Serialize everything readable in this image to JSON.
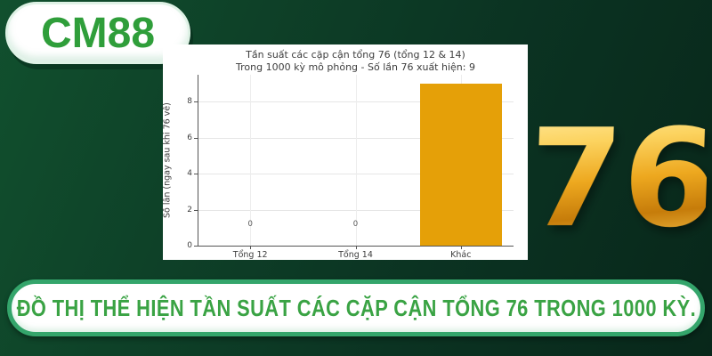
{
  "background": {
    "top_left": "#11502e",
    "bottom_right": "#08271a"
  },
  "logo": {
    "text": "CM88",
    "text_color": "#2f9e3a"
  },
  "hero_number": {
    "text": "76",
    "gold_light": "#ffeaa0",
    "gold_dark": "#c67c0a"
  },
  "chart_data": {
    "type": "bar",
    "title": "Tần suất các cặp cận tổng 76 (tổng 12 & 14)",
    "subtitle": "Trong 1000 kỳ mô phỏng - Số lần 76 xuất hiện: 9",
    "categories": [
      "Tổng 12",
      "Tổng 14",
      "Khác"
    ],
    "values": [
      0,
      0,
      9
    ],
    "ylabel": "Số lần (ngay sau khi 76 về)",
    "xlabel": "",
    "yticks": [
      0,
      2,
      4,
      6,
      8
    ],
    "ylim": [
      0,
      9.5
    ],
    "bar_color": "#E5A008",
    "grid": true,
    "legend": false
  },
  "banner": {
    "text": "ĐỒ THỊ THỂ HIỆN TẦN SUẤT CÁC CẶP CẬN TỔNG 76 TRONG 1000 KỲ.",
    "text_color": "#3aa344",
    "border_color": "#34a56b"
  }
}
